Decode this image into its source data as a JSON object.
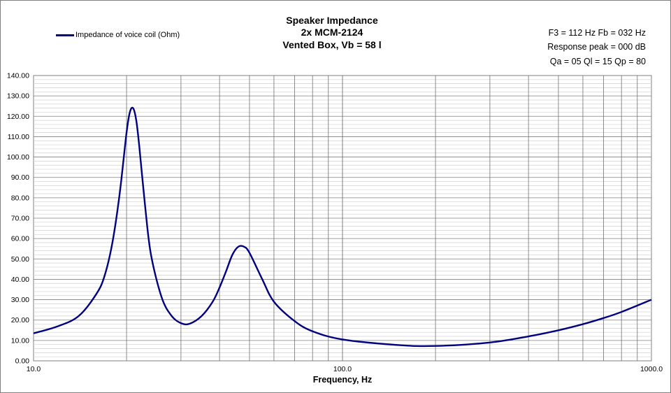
{
  "chart_data": {
    "type": "line",
    "title": [
      "Speaker Impedance",
      "2x MCM-2124",
      "Vented Box, Vb = 58 l"
    ],
    "info": [
      "F3 = 112 Hz  Fb = 032 Hz",
      "Response peak = 000 dB",
      "Qa = 05  Ql = 15  Qp = 80"
    ],
    "xlabel": "Frequency, Hz",
    "ylabel": "",
    "x_scale": "log",
    "xlim": [
      10,
      1000
    ],
    "ylim": [
      0,
      140
    ],
    "y_ticks": [
      "0.00",
      "10.00",
      "20.00",
      "30.00",
      "40.00",
      "50.00",
      "60.00",
      "70.00",
      "80.00",
      "90.00",
      "100.00",
      "110.00",
      "120.00",
      "130.00",
      "140.00"
    ],
    "x_ticks": [
      "10.0",
      "100.0",
      "1000.0"
    ],
    "grid": true,
    "legend_position": "top-left",
    "series": [
      {
        "name": "Impedance of voice coil (Ohm)",
        "color": "#000080",
        "x": [
          10,
          12,
          14,
          16,
          17,
          18,
          19,
          20,
          20.5,
          21,
          21.5,
          22,
          23,
          24,
          26,
          28,
          30,
          32,
          35,
          38,
          40,
          42,
          44,
          46,
          48,
          50,
          55,
          60,
          70,
          80,
          100,
          150,
          200,
          300,
          400,
          500,
          600,
          700,
          800,
          1000
        ],
        "y": [
          13.5,
          17,
          22,
          33,
          42,
          58,
          82,
          112,
          122,
          124,
          118,
          105,
          75,
          52,
          31,
          22,
          18.5,
          18.2,
          22,
          29,
          36,
          44,
          52,
          56,
          56,
          53,
          40,
          29,
          19.5,
          14.5,
          10.5,
          7.8,
          7.3,
          9,
          12,
          15,
          18,
          21,
          24,
          30
        ]
      }
    ]
  }
}
